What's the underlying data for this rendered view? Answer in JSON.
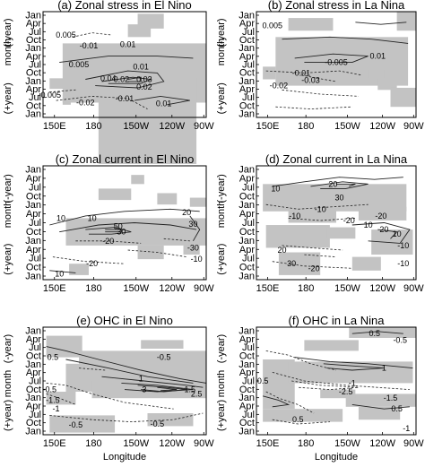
{
  "figure": {
    "xlabel": "Longitude",
    "month_label": "month",
    "prev_year_label": "(-year)",
    "next_year_label": "(+year)"
  },
  "chart_data": [
    {
      "type": "contour",
      "panel": "(a)",
      "title": "Zonal stress in El Nino",
      "x_ticks": [
        "150E",
        "180",
        "150W",
        "120W",
        "90W"
      ],
      "y_ticks": [
        "Jan",
        "Apr",
        "Jul",
        "Oct",
        "Jan",
        "Apr",
        "Jul",
        "Oct",
        "Jan",
        "Apr",
        "Jul",
        "Oct",
        "Jan"
      ],
      "contour_labels": [
        "0.005",
        "-0.01",
        "0.01",
        "0.005",
        "0.01",
        "0.02",
        "0.04",
        "0.02",
        "0.03",
        "-0.005",
        "-0.02",
        "-0.01",
        "0.01"
      ]
    },
    {
      "type": "contour",
      "panel": "(b)",
      "title": "Zonal stress in La Nina",
      "x_ticks": [
        "150E",
        "180",
        "150W",
        "120W",
        "90W"
      ],
      "y_ticks": [
        "Jan",
        "Apr",
        "Jul",
        "Oct",
        "Jan",
        "Apr",
        "Jul",
        "Oct",
        "Jan",
        "Apr",
        "Jul",
        "Oct",
        "Jan"
      ],
      "contour_labels": [
        "0.005",
        "-0.01",
        "-0.02",
        "0.01",
        "-0.005",
        "-0.03"
      ]
    },
    {
      "type": "contour",
      "panel": "(c)",
      "title": "Zonal current in El Nino",
      "x_ticks": [
        "150E",
        "180",
        "150W",
        "120W",
        "90W"
      ],
      "y_ticks": [
        "Jan",
        "Apr",
        "Jul",
        "Oct",
        "Jan",
        "Apr",
        "Jul",
        "Oct",
        "Jan",
        "Apr",
        "Jul",
        "Oct",
        "Jan"
      ],
      "contour_labels": [
        "10",
        "10",
        "20",
        "50",
        "30",
        "30",
        "-20",
        "-10",
        "-30",
        "-20",
        "10"
      ]
    },
    {
      "type": "contour",
      "panel": "(d)",
      "title": "Zonal current in La Nina",
      "x_ticks": [
        "150E",
        "180",
        "150W",
        "120W",
        "90W"
      ],
      "y_ticks": [
        "Jan",
        "Apr",
        "Jul",
        "Oct",
        "Jan",
        "Apr",
        "Jul",
        "Oct",
        "Jan",
        "Apr",
        "Jul",
        "Oct",
        "Jan"
      ],
      "contour_labels": [
        "10",
        "20",
        "30",
        "-10",
        "-10",
        "-20",
        "-20",
        "10",
        "20",
        "10",
        "-10",
        "20",
        "30",
        "-10",
        "-20"
      ]
    },
    {
      "type": "contour",
      "panel": "(e)",
      "title": "OHC in El Nino",
      "x_ticks": [
        "150E",
        "180",
        "150W",
        "120W",
        "90W"
      ],
      "y_ticks": [
        "Jan",
        "Apr",
        "Jul",
        "Oct",
        "Jan",
        "Apr",
        "Jul",
        "Oct",
        "Jan",
        "Apr",
        "Jul",
        "Oct",
        "Jan"
      ],
      "contour_labels": [
        "0.5",
        "-0.5",
        "1",
        "1.5",
        "2.5",
        "3",
        "-0.5",
        "-1.5",
        "-1",
        "-0.5",
        "-0.5"
      ]
    },
    {
      "type": "contour",
      "panel": "(f)",
      "title": "OHC in La Nina",
      "x_ticks": [
        "150E",
        "180",
        "150W",
        "120W",
        "90W"
      ],
      "y_ticks": [
        "Jan",
        "Apr",
        "Jul",
        "Oct",
        "Jan",
        "Apr",
        "Jul",
        "Oct",
        "Jan",
        "Apr",
        "Jul",
        "Oct",
        "Jan"
      ],
      "contour_labels": [
        "0.5",
        "-0.5",
        "1",
        "0.5",
        "-2.5",
        "-1",
        "-1.5",
        "0.5",
        "0.5",
        "-1"
      ]
    }
  ]
}
